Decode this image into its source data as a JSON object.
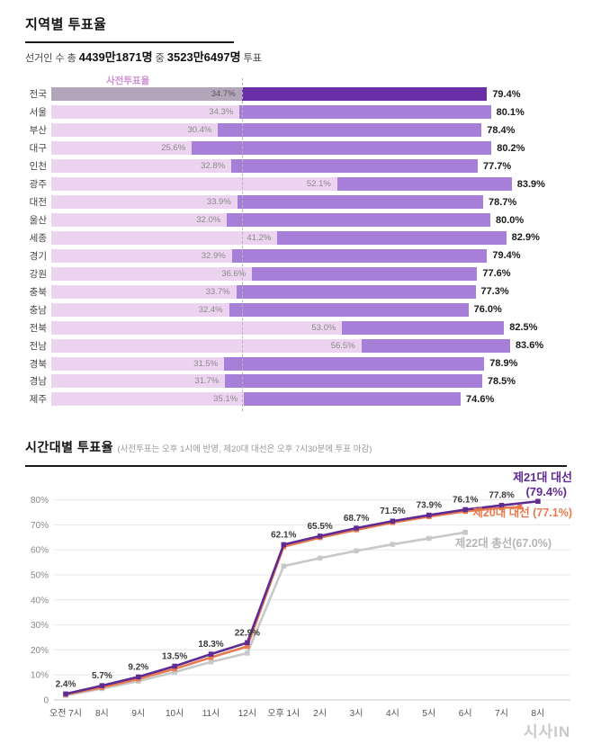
{
  "header": {
    "subtitle_prefix": "선거인 수 총 ",
    "total_voters": "4439만1871명",
    "subtitle_mid": " 중 ",
    "voted_count": "3523만6497명",
    "subtitle_suffix": " 투표"
  },
  "footer": {
    "watermark": "시사IN"
  },
  "chart_data": [
    {
      "type": "bar",
      "title": "지역별 투표율",
      "orientation": "horizontal-stacked",
      "unit": "%",
      "xlim": [
        0,
        90
      ],
      "early_series_label": "사전투표율",
      "reference_line_value": 34.7,
      "colors": {
        "early_bar": "#ecd3f0",
        "main_bar": "#a87fd8",
        "highlight_early_bar": "#b3a6ba",
        "highlight_main_bar": "#6a2fa6",
        "early_label_color": "#d08fd6"
      },
      "rows": [
        {
          "region": "전국",
          "early_pct": 34.7,
          "total_pct": 79.4,
          "highlight": true
        },
        {
          "region": "서울",
          "early_pct": 34.3,
          "total_pct": 80.1,
          "highlight": false
        },
        {
          "region": "부산",
          "early_pct": 30.4,
          "total_pct": 78.4,
          "highlight": false
        },
        {
          "region": "대구",
          "early_pct": 25.6,
          "total_pct": 80.2,
          "highlight": false
        },
        {
          "region": "인천",
          "early_pct": 32.8,
          "total_pct": 77.7,
          "highlight": false
        },
        {
          "region": "광주",
          "early_pct": 52.1,
          "total_pct": 83.9,
          "highlight": false
        },
        {
          "region": "대전",
          "early_pct": 33.9,
          "total_pct": 78.7,
          "highlight": false
        },
        {
          "region": "울산",
          "early_pct": 32.0,
          "total_pct": 80.0,
          "highlight": false
        },
        {
          "region": "세종",
          "early_pct": 41.2,
          "total_pct": 82.9,
          "highlight": false
        },
        {
          "region": "경기",
          "early_pct": 32.9,
          "total_pct": 79.4,
          "highlight": false
        },
        {
          "region": "강원",
          "early_pct": 36.6,
          "total_pct": 77.6,
          "highlight": false
        },
        {
          "region": "충북",
          "early_pct": 33.7,
          "total_pct": 77.3,
          "highlight": false
        },
        {
          "region": "충남",
          "early_pct": 32.4,
          "total_pct": 76.0,
          "highlight": false
        },
        {
          "region": "전북",
          "early_pct": 53.0,
          "total_pct": 82.5,
          "highlight": false
        },
        {
          "region": "전남",
          "early_pct": 56.5,
          "total_pct": 83.6,
          "highlight": false
        },
        {
          "region": "경북",
          "early_pct": 31.5,
          "total_pct": 78.9,
          "highlight": false
        },
        {
          "region": "경남",
          "early_pct": 31.7,
          "total_pct": 78.5,
          "highlight": false
        },
        {
          "region": "제주",
          "early_pct": 35.1,
          "total_pct": 74.6,
          "highlight": false
        }
      ]
    },
    {
      "type": "line",
      "title": "시간대별 투표율",
      "note": "(사전투표는 오후 1시에 반영, 제20대 대선은 오후 7시30분에 투표 마감)",
      "ylim": [
        0,
        80
      ],
      "grid": true,
      "y_ticks": [
        "0",
        "10%",
        "20%",
        "30%",
        "40%",
        "50%",
        "60%",
        "70%",
        "80%"
      ],
      "x_categories": [
        "오전 7시",
        "8시",
        "9시",
        "10시",
        "11시",
        "12시",
        "오후 1시",
        "2시",
        "3시",
        "4시",
        "5시",
        "6시",
        "7시",
        "8시"
      ],
      "series": [
        {
          "name": "제21대 대선",
          "final_value": 79.4,
          "color": "#5f2b92",
          "show_point_labels": true,
          "values": [
            2.4,
            5.7,
            9.2,
            13.5,
            18.3,
            22.9,
            62.1,
            65.5,
            68.7,
            71.5,
            73.9,
            76.1,
            77.8,
            79.4
          ]
        },
        {
          "name": "제20대 대선",
          "final_value": 77.1,
          "color": "#e87a4e",
          "show_point_labels": false,
          "values": [
            2.2,
            5.0,
            8.4,
            12.4,
            17.0,
            21.4,
            61.3,
            64.9,
            68.0,
            70.9,
            73.3,
            75.4,
            76.8
          ],
          "extra_point": {
            "x": 12.5,
            "value": 77.1
          }
        },
        {
          "name": "제22대 총선",
          "final_value": 67.0,
          "color": "#c8c8c8",
          "show_point_labels": false,
          "values": [
            1.8,
            4.5,
            7.5,
            11.1,
            15.2,
            18.7,
            53.5,
            56.7,
            59.6,
            62.2,
            64.6,
            67.0
          ]
        }
      ],
      "annotations": {
        "series21_line1": "제21대 대선",
        "series21_line2": "(79.4%)",
        "series20": "제20대 대선 (77.1%)",
        "series22": "제22대 총선(67.0%)"
      }
    }
  ]
}
